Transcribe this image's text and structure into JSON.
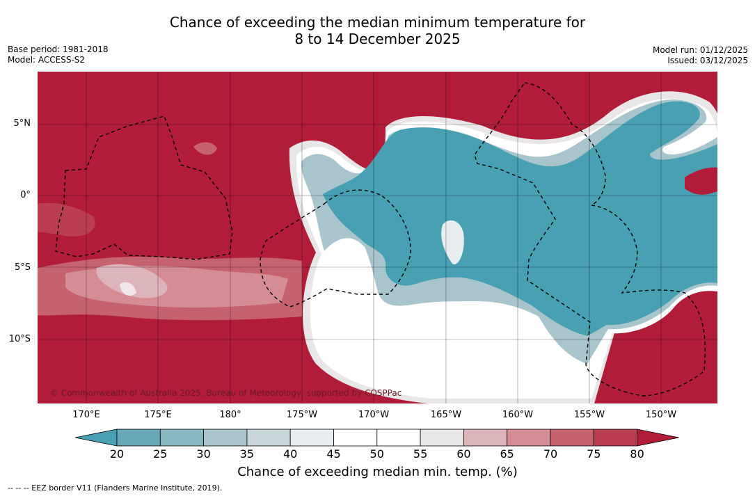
{
  "title": {
    "line1": "Chance of exceeding the median minimum temperature for",
    "line2": "8 to 14 December 2025"
  },
  "meta_left": {
    "base_period": "Base period: 1981-2018",
    "model": "Model: ACCESS-S2"
  },
  "meta_right": {
    "model_run": "Model run: 01/12/2025",
    "issued": "Issued: 03/12/2025"
  },
  "map": {
    "lat_labels": [
      "5°N",
      "0°",
      "5°S",
      "10°S"
    ],
    "lon_labels": [
      "170°E",
      "175°E",
      "180°",
      "175°W",
      "170°W",
      "165°W",
      "160°W",
      "155°W",
      "150°W"
    ],
    "copyright": "© Commonwealth of Australia 2025, Bureau of Meteorology, supported by COSPPac"
  },
  "colorbar": {
    "ticks": [
      "20",
      "25",
      "30",
      "35",
      "40",
      "45",
      "50",
      "55",
      "60",
      "65",
      "70",
      "75",
      "80"
    ],
    "colors": [
      "#48a0b2",
      "#68a8b8",
      "#88b6c2",
      "#a8c4cc",
      "#c8d6da",
      "#e8eef0",
      "#ffffff",
      "#ffffff",
      "#e8e6e7",
      "#deb4bb",
      "#d48d95",
      "#c6626e",
      "#bb3e4f",
      "#b11d39"
    ],
    "title": "Chance of exceeding median min. temp. (%)"
  },
  "footnote": "--  --  -- EEZ border V11 (Flanders Marine Institute, 2019)."
}
